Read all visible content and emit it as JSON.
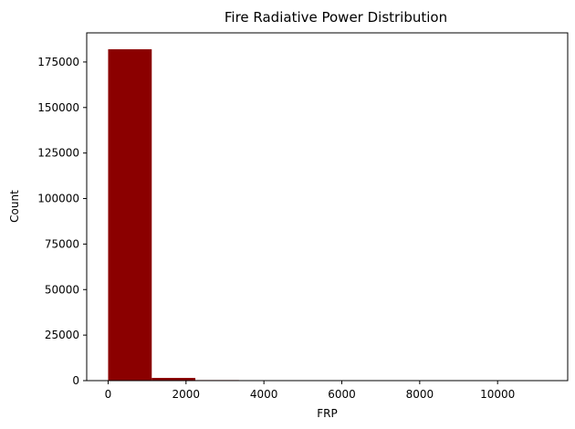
{
  "chart_data": {
    "type": "bar",
    "title": "Fire Radiative Power Distribution",
    "xlabel": "FRP",
    "ylabel": "Count",
    "bar_color": "#8b0000",
    "grid": false,
    "legend": "none",
    "xlim": [
      -550,
      11800
    ],
    "ylim": [
      0,
      191000
    ],
    "xticks": [
      0,
      2000,
      4000,
      6000,
      8000,
      10000
    ],
    "yticks": [
      0,
      25000,
      50000,
      75000,
      100000,
      125000,
      150000,
      175000
    ],
    "bins": [
      {
        "x0": 0,
        "x1": 1120,
        "count": 182000
      },
      {
        "x0": 1120,
        "x1": 2240,
        "count": 1500
      },
      {
        "x0": 2240,
        "x1": 3360,
        "count": 300
      },
      {
        "x0": 3360,
        "x1": 4480,
        "count": 80
      },
      {
        "x0": 4480,
        "x1": 5600,
        "count": 30
      },
      {
        "x0": 5600,
        "x1": 6720,
        "count": 15
      },
      {
        "x0": 6720,
        "x1": 7840,
        "count": 8
      },
      {
        "x0": 7840,
        "x1": 8960,
        "count": 4
      },
      {
        "x0": 8960,
        "x1": 10080,
        "count": 2
      },
      {
        "x0": 10080,
        "x1": 11200,
        "count": 1
      }
    ]
  }
}
